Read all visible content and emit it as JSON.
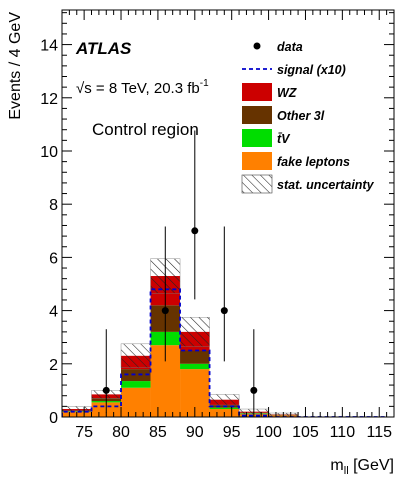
{
  "chart_data": {
    "type": "bar",
    "stacked": true,
    "experiment": "ATLAS",
    "energy_text": "√s = 8 TeV, 20.3 fb",
    "lumi_superscript": "-1",
    "region_label": "Control region",
    "ylabel": "Events / 4 GeV",
    "xlabel_main": "m",
    "xlabel_sub": "ll",
    "xlabel_unit": " [GeV]",
    "xlim": [
      72,
      117
    ],
    "ylim": [
      0,
      15.3
    ],
    "x_ticks": [
      75,
      80,
      85,
      90,
      95,
      100,
      105,
      110,
      115
    ],
    "y_ticks": [
      0,
      2,
      4,
      6,
      8,
      10,
      12,
      14
    ],
    "bin_edges": [
      72,
      76,
      80,
      84,
      88,
      92,
      96,
      100,
      104,
      108,
      112,
      116
    ],
    "series": [
      {
        "name": "fake leptons",
        "color": "#ff8000",
        "values": [
          0.2,
          0.55,
          1.1,
          2.7,
          1.8,
          0.3,
          0.12,
          0.08,
          0,
          0,
          0
        ]
      },
      {
        "name": "t̄V",
        "color": "#00dd00",
        "values": [
          0.02,
          0.05,
          0.25,
          0.5,
          0.2,
          0.05,
          0.02,
          0,
          0,
          0,
          0
        ]
      },
      {
        "name": "Other 3l",
        "color": "#663300",
        "values": [
          0.03,
          0.1,
          0.45,
          1.0,
          0.5,
          0.1,
          0.02,
          0.01,
          0,
          0,
          0
        ]
      },
      {
        "name": "WZ",
        "color": "#cc0000",
        "values": [
          0.05,
          0.15,
          0.5,
          1.1,
          0.7,
          0.2,
          0.04,
          0.01,
          0,
          0,
          0
        ]
      }
    ],
    "stat_uncertainty": [
      0.1,
      0.15,
      0.45,
      0.65,
      0.55,
      0.2,
      0.1,
      0.05,
      0,
      0,
      0
    ],
    "signal": {
      "name": "signal (x10)",
      "color": "#0000cc",
      "values": [
        0.2,
        0.4,
        1.6,
        4.8,
        2.5,
        0.4,
        0.05,
        0,
        0,
        0,
        0
      ]
    },
    "data": {
      "name": "data",
      "points": [
        {
          "x": 78,
          "y": 1,
          "err_low": 0.83,
          "err_high": 2.3
        },
        {
          "x": 86,
          "y": 4,
          "err_low": 1.91,
          "err_high": 3.16
        },
        {
          "x": 90,
          "y": 7,
          "err_low": 2.58,
          "err_high": 3.77
        },
        {
          "x": 94,
          "y": 4,
          "err_low": 1.91,
          "err_high": 3.16
        },
        {
          "x": 98,
          "y": 1,
          "err_low": 0.83,
          "err_high": 2.3
        }
      ]
    },
    "legend": {
      "position": "top-right",
      "entries": [
        {
          "label": "data",
          "kind": "marker"
        },
        {
          "label": "signal (x10)",
          "kind": "dashed-line",
          "color": "#0000cc"
        },
        {
          "label": "WZ",
          "kind": "box",
          "color": "#cc0000"
        },
        {
          "label": "Other 3l",
          "kind": "box",
          "color": "#663300"
        },
        {
          "label": "t̄V",
          "kind": "box",
          "color": "#00dd00"
        },
        {
          "label": "fake leptons",
          "kind": "box",
          "color": "#ff8000"
        },
        {
          "label": "stat. uncertainty",
          "kind": "hatched"
        }
      ]
    }
  }
}
